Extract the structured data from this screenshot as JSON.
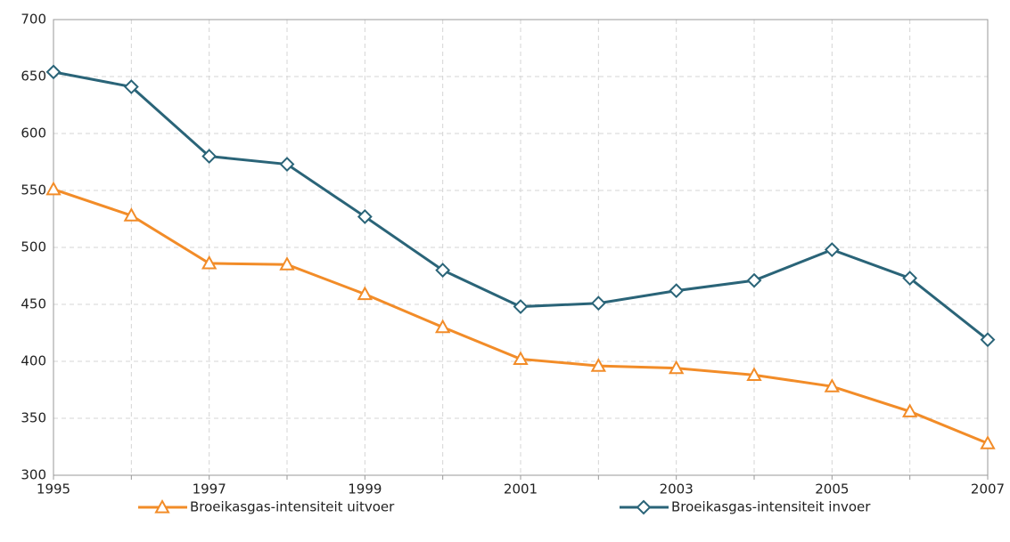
{
  "chart_data": {
    "type": "line",
    "categories": [
      "1995",
      null,
      "1997",
      null,
      "1999",
      null,
      "2001",
      null,
      "2003",
      null,
      "2005",
      null,
      "2007"
    ],
    "series": [
      {
        "name": "Broeikasgas-intensiteit uitvoer",
        "color": "#f28c28",
        "marker": "triangle",
        "values": [
          551,
          528,
          486,
          485,
          459,
          430,
          402,
          396,
          394,
          388,
          378,
          356,
          328
        ]
      },
      {
        "name": "Broeikasgas-intensiteit invoer",
        "color": "#2a6478",
        "marker": "diamond",
        "values": [
          654,
          641,
          580,
          573,
          527,
          480,
          448,
          451,
          462,
          471,
          498,
          473,
          419
        ]
      }
    ],
    "ylim": [
      300,
      700
    ],
    "yticks": [
      300,
      350,
      400,
      450,
      500,
      550,
      600,
      650,
      700
    ],
    "grid": true,
    "legend": "bottom"
  }
}
